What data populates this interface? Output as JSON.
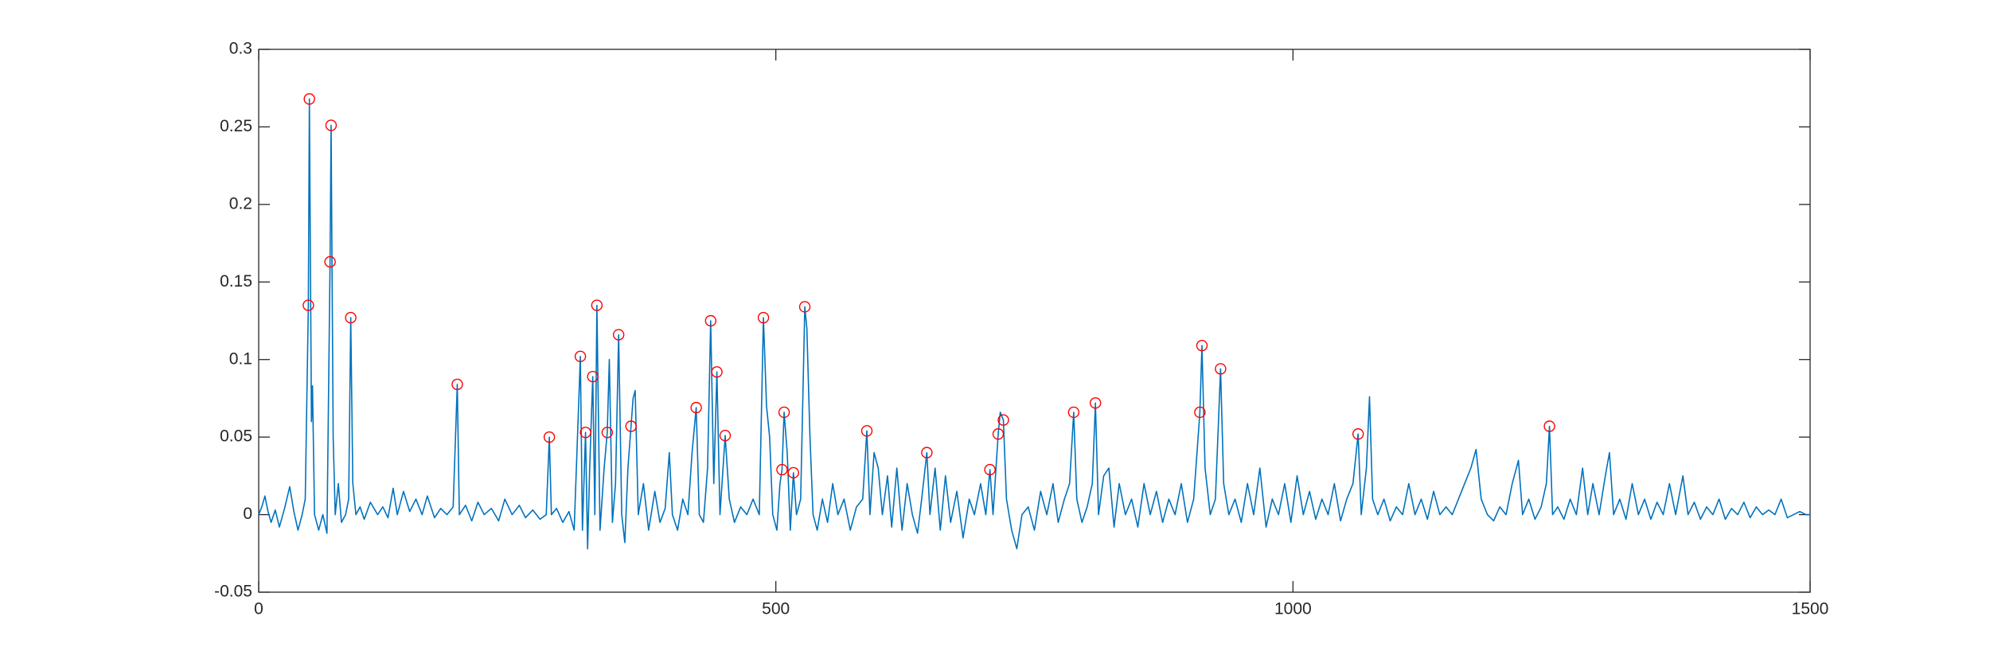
{
  "chart_data": {
    "type": "line",
    "xlim": [
      0,
      1500
    ],
    "ylim": [
      -0.05,
      0.3
    ],
    "xticks": [
      0,
      500,
      1000,
      1500
    ],
    "yticks": [
      -0.05,
      0,
      0.05,
      0.1,
      0.15,
      0.2,
      0.25,
      0.3
    ],
    "series": [
      {
        "type": "line",
        "color": "#0072bd",
        "x": [
          0,
          3,
          6,
          9,
          12,
          16,
          20,
          25,
          30,
          34,
          38,
          42,
          45,
          48,
          49,
          51,
          52,
          54,
          58,
          62,
          66,
          69,
          70,
          72,
          74,
          77,
          80,
          84,
          87,
          89,
          91,
          94,
          98,
          102,
          108,
          115,
          120,
          125,
          130,
          134,
          140,
          146,
          152,
          158,
          163,
          170,
          176,
          182,
          188,
          192,
          194,
          200,
          206,
          212,
          218,
          225,
          232,
          238,
          245,
          252,
          258,
          265,
          272,
          278,
          281,
          283,
          288,
          294,
          300,
          305,
          311,
          313,
          316,
          318,
          320,
          323,
          325,
          327,
          330,
          334,
          337,
          339,
          342,
          345,
          348,
          351,
          354,
          357,
          360,
          362,
          364,
          367,
          372,
          377,
          383,
          388,
          393,
          397,
          400,
          405,
          410,
          415,
          419,
          423,
          426,
          430,
          434,
          437,
          440,
          443,
          446,
          451,
          455,
          460,
          466,
          472,
          478,
          484,
          488,
          491,
          494,
          497,
          501,
          504,
          506,
          508,
          511,
          514,
          517,
          520,
          524,
          528,
          530,
          533,
          536,
          540,
          545,
          550,
          555,
          560,
          566,
          572,
          578,
          584,
          588,
          591,
          595,
          599,
          603,
          608,
          612,
          617,
          622,
          627,
          632,
          637,
          641,
          646,
          649,
          654,
          659,
          664,
          669,
          675,
          681,
          687,
          692,
          698,
          703,
          707,
          710,
          715,
          717,
          720,
          723,
          728,
          733,
          738,
          744,
          750,
          756,
          762,
          768,
          773,
          779,
          784,
          788,
          791,
          796,
          801,
          806,
          809,
          812,
          817,
          822,
          827,
          832,
          838,
          844,
          850,
          856,
          862,
          868,
          874,
          880,
          886,
          892,
          898,
          904,
          910,
          912,
          915,
          920,
          925,
          930,
          933,
          938,
          944,
          950,
          956,
          962,
          968,
          974,
          980,
          986,
          992,
          998,
          1004,
          1010,
          1016,
          1022,
          1028,
          1034,
          1040,
          1046,
          1052,
          1058,
          1063,
          1066,
          1071,
          1074,
          1077,
          1082,
          1088,
          1094,
          1100,
          1106,
          1112,
          1118,
          1124,
          1130,
          1136,
          1142,
          1148,
          1154,
          1160,
          1166,
          1172,
          1177,
          1182,
          1188,
          1194,
          1200,
          1206,
          1212,
          1218,
          1222,
          1228,
          1234,
          1240,
          1245,
          1248,
          1251,
          1256,
          1262,
          1268,
          1274,
          1280,
          1285,
          1290,
          1296,
          1302,
          1306,
          1310,
          1316,
          1322,
          1328,
          1334,
          1340,
          1346,
          1352,
          1358,
          1364,
          1370,
          1377,
          1382,
          1388,
          1394,
          1400,
          1406,
          1412,
          1418,
          1424,
          1430,
          1436,
          1442,
          1448,
          1454,
          1460,
          1466,
          1472,
          1478,
          1484,
          1490,
          1496,
          1500
        ],
        "values": [
          0,
          0.005,
          0.012,
          0.002,
          -0.005,
          0.003,
          -0.008,
          0.004,
          0.018,
          0.002,
          -0.01,
          0,
          0.01,
          0.135,
          0.268,
          0.06,
          0.083,
          0,
          -0.01,
          0,
          -0.012,
          0.163,
          0.251,
          0.05,
          0,
          0.02,
          -0.005,
          0,
          0.01,
          0.127,
          0.02,
          0,
          0.005,
          -0.003,
          0.008,
          0,
          0.005,
          -0.002,
          0.017,
          0,
          0.015,
          0.002,
          0.01,
          0,
          0.012,
          -0.002,
          0.004,
          0,
          0.005,
          0.084,
          0,
          0.006,
          -0.004,
          0.008,
          0,
          0.004,
          -0.004,
          0.01,
          0,
          0.006,
          -0.002,
          0.003,
          -0.003,
          0,
          0.05,
          0,
          0.004,
          -0.005,
          0.002,
          -0.01,
          0.102,
          -0.01,
          0.053,
          -0.022,
          0.03,
          0.089,
          0,
          0.135,
          -0.01,
          0.03,
          0.053,
          0.1,
          -0.005,
          0.02,
          0.116,
          0,
          -0.018,
          0.03,
          0.057,
          0.075,
          0.08,
          0,
          0.02,
          -0.01,
          0.015,
          -0.005,
          0.004,
          0.04,
          0,
          -0.01,
          0.01,
          0,
          0.04,
          0.069,
          0,
          -0.005,
          0.03,
          0.125,
          0.02,
          0.092,
          0,
          0.051,
          0.01,
          -0.005,
          0.005,
          0,
          0.01,
          0,
          0.127,
          0.07,
          0.05,
          0,
          -0.01,
          0.02,
          0.029,
          0.066,
          0.04,
          -0.01,
          0.027,
          0,
          0.01,
          0.134,
          0.12,
          0.05,
          0,
          -0.01,
          0.01,
          -0.005,
          0.02,
          0,
          0.01,
          -0.01,
          0.005,
          0.01,
          0.054,
          0,
          0.04,
          0.03,
          0,
          0.025,
          -0.008,
          0.03,
          -0.01,
          0.02,
          0,
          -0.012,
          0.01,
          0.04,
          0,
          0.03,
          -0.01,
          0.025,
          -0.005,
          0.015,
          -0.015,
          0.01,
          0,
          0.02,
          0,
          0.029,
          0,
          0.052,
          0.066,
          0.061,
          0.01,
          -0.01,
          -0.022,
          0,
          0.005,
          -0.01,
          0.015,
          0,
          0.02,
          -0.005,
          0.01,
          0.02,
          0.066,
          0.01,
          -0.005,
          0.005,
          0.02,
          0.072,
          0,
          0.025,
          0.03,
          -0.008,
          0.02,
          0,
          0.01,
          -0.008,
          0.02,
          0,
          0.015,
          -0.005,
          0.01,
          0,
          0.02,
          -0.005,
          0.01,
          0.066,
          0.109,
          0.03,
          0,
          0.01,
          0.094,
          0.02,
          0,
          0.01,
          -0.005,
          0.02,
          0,
          0.03,
          -0.008,
          0.01,
          0,
          0.02,
          -0.005,
          0.025,
          0,
          0.015,
          -0.003,
          0.01,
          0,
          0.02,
          -0.004,
          0.01,
          0.02,
          0.052,
          0,
          0.03,
          0.076,
          0.01,
          0,
          0.01,
          -0.004,
          0.005,
          0,
          0.02,
          0,
          0.01,
          -0.003,
          0.015,
          0,
          0.005,
          0,
          0.01,
          0.02,
          0.03,
          0.042,
          0.01,
          0,
          -0.004,
          0.005,
          0,
          0.02,
          0.035,
          0,
          0.01,
          -0.003,
          0.005,
          0.02,
          0.057,
          0,
          0.005,
          -0.003,
          0.01,
          0,
          0.03,
          0,
          0.02,
          0,
          0.025,
          0.04,
          0,
          0.01,
          -0.003,
          0.02,
          0,
          0.01,
          -0.003,
          0.008,
          0,
          0.02,
          0,
          0.025,
          0,
          0.008,
          -0.003,
          0.005,
          0,
          0.01,
          -0.003,
          0.004,
          0,
          0.008,
          -0.002,
          0.005,
          0,
          0.003,
          0,
          0.01,
          -0.002,
          0,
          0.002,
          0,
          0
        ]
      },
      {
        "type": "scatter",
        "color": "#ff0000",
        "x": [
          48,
          49,
          69,
          70,
          89,
          192,
          281,
          311,
          316,
          323,
          327,
          337,
          348,
          360,
          423,
          437,
          443,
          451,
          488,
          506,
          508,
          517,
          528,
          588,
          646,
          707,
          715,
          720,
          788,
          809,
          910,
          912,
          930,
          1063,
          1248
        ],
        "values": [
          0.135,
          0.268,
          0.163,
          0.251,
          0.127,
          0.084,
          0.05,
          0.102,
          0.053,
          0.089,
          0.135,
          0.053,
          0.116,
          0.057,
          0.069,
          0.125,
          0.092,
          0.051,
          0.127,
          0.029,
          0.066,
          0.027,
          0.134,
          0.054,
          0.04,
          0.029,
          0.052,
          0.061,
          0.066,
          0.072,
          0.066,
          0.109,
          0.094,
          0.052,
          0.057
        ]
      }
    ]
  }
}
